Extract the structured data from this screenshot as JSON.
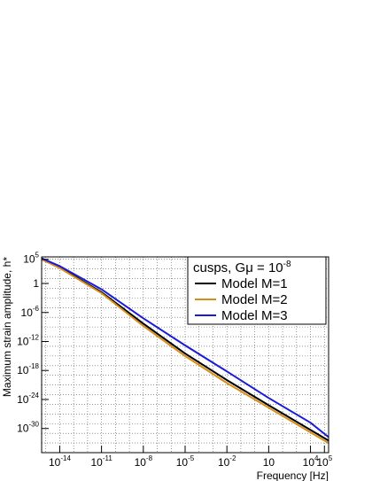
{
  "chart_data": {
    "type": "line",
    "title": "",
    "xlabel": "Frequency [Hz]",
    "ylabel": "Maximum strain amplitude, h*",
    "x_scale": "log",
    "y_scale": "log",
    "xlim_log10": [
      -15.3,
      5.3
    ],
    "ylim_log10": [
      -35,
      5.5
    ],
    "x_ticks": [
      {
        "base": "10",
        "exp": "-14",
        "log": -14
      },
      {
        "base": "10",
        "exp": "-11",
        "log": -11
      },
      {
        "base": "10",
        "exp": "-8",
        "log": -8
      },
      {
        "base": "10",
        "exp": "-5",
        "log": -5
      },
      {
        "base": "10",
        "exp": "-2",
        "log": -2
      },
      {
        "base": "10",
        "exp": "",
        "log": 1
      },
      {
        "base": "10",
        "exp": "4",
        "log": 4
      },
      {
        "base": "10",
        "exp": "5",
        "log": 5
      }
    ],
    "y_ticks": [
      {
        "base": "10",
        "exp": "5",
        "log": 5
      },
      {
        "base": "1",
        "exp": "",
        "log": 0
      },
      {
        "base": "10",
        "exp": "-6",
        "log": -6
      },
      {
        "base": "10",
        "exp": "-12",
        "log": -12
      },
      {
        "base": "10",
        "exp": "-18",
        "log": -18
      },
      {
        "base": "10",
        "exp": "-24",
        "log": -24
      },
      {
        "base": "10",
        "exp": "-30",
        "log": -30
      }
    ],
    "grid": true,
    "legend": {
      "title_prefix": "cusps, G",
      "title_mu": "μ",
      "title_suffix": " = 10",
      "title_exp": "-8",
      "placement": "top-right"
    },
    "series": [
      {
        "name": "Model M=1",
        "color": "#000000",
        "x_log10": [
          -15.3,
          -14,
          -11,
          -8,
          -5,
          -2,
          1,
          4,
          5.3
        ],
        "y_log10": [
          5.0,
          3.3,
          -1.8,
          -8.3,
          -14.5,
          -20.0,
          -25.2,
          -30.3,
          -32.5
        ]
      },
      {
        "name": "Model M=2",
        "color": "#d98c1a",
        "x_log10": [
          -15.3,
          -14,
          -11,
          -8,
          -5,
          -2,
          1,
          4,
          5.3
        ],
        "y_log10": [
          5.0,
          3.2,
          -2.0,
          -8.8,
          -15.0,
          -20.6,
          -25.7,
          -30.8,
          -33.0
        ]
      },
      {
        "name": "Model M=3",
        "color": "#1a1ad9",
        "x_log10": [
          -15.3,
          -14,
          -11,
          -8,
          -5,
          -2,
          1,
          4,
          5.3
        ],
        "y_log10": [
          5.2,
          3.6,
          -1.2,
          -7.2,
          -12.8,
          -18.2,
          -23.7,
          -28.8,
          -31.8
        ]
      }
    ]
  }
}
